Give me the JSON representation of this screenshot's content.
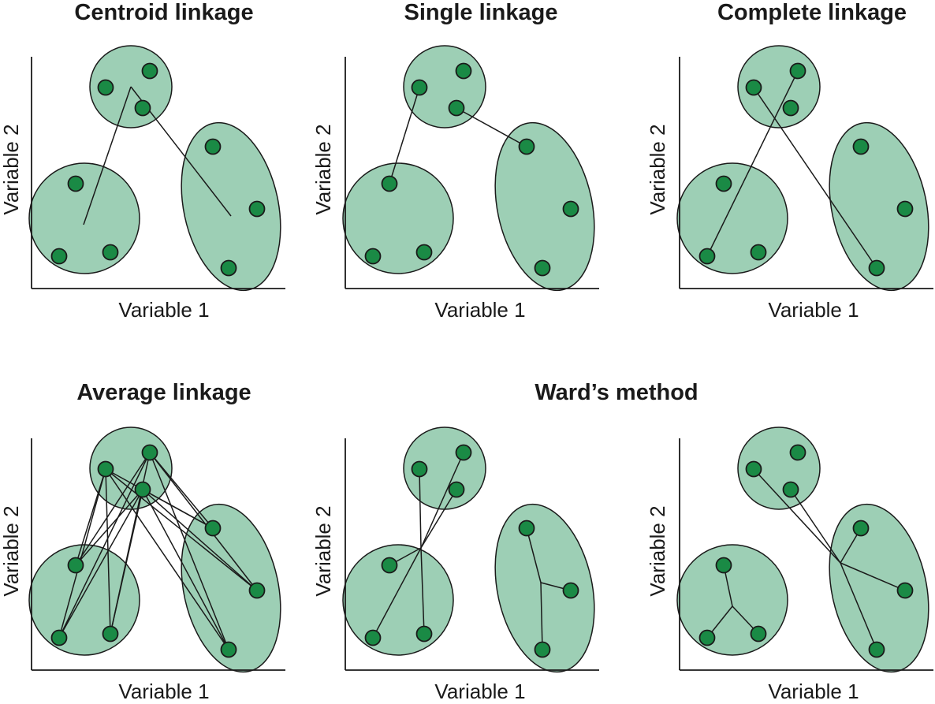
{
  "panels": [
    {
      "title": "Centroid linkage",
      "xlabel": "Variable 1",
      "ylabel": "Variable 2"
    },
    {
      "title": "Single linkage",
      "xlabel": "Variable 1",
      "ylabel": "Variable 2"
    },
    {
      "title": "Complete linkage",
      "xlabel": "Variable 1",
      "ylabel": "Variable 2"
    },
    {
      "title": "Average linkage",
      "xlabel": "Variable 1",
      "ylabel": "Variable 2"
    },
    {
      "title": "",
      "xlabel": "Variable 1",
      "ylabel": "Variable 2"
    },
    {
      "title": "",
      "xlabel": "Variable 1",
      "ylabel": "Variable 2"
    }
  ],
  "shared_title": "Ward’s method",
  "colors": {
    "cluster_fill": "#9dcfb5",
    "point_fill": "#1a8a45",
    "stroke": "#1a1a1a"
  }
}
